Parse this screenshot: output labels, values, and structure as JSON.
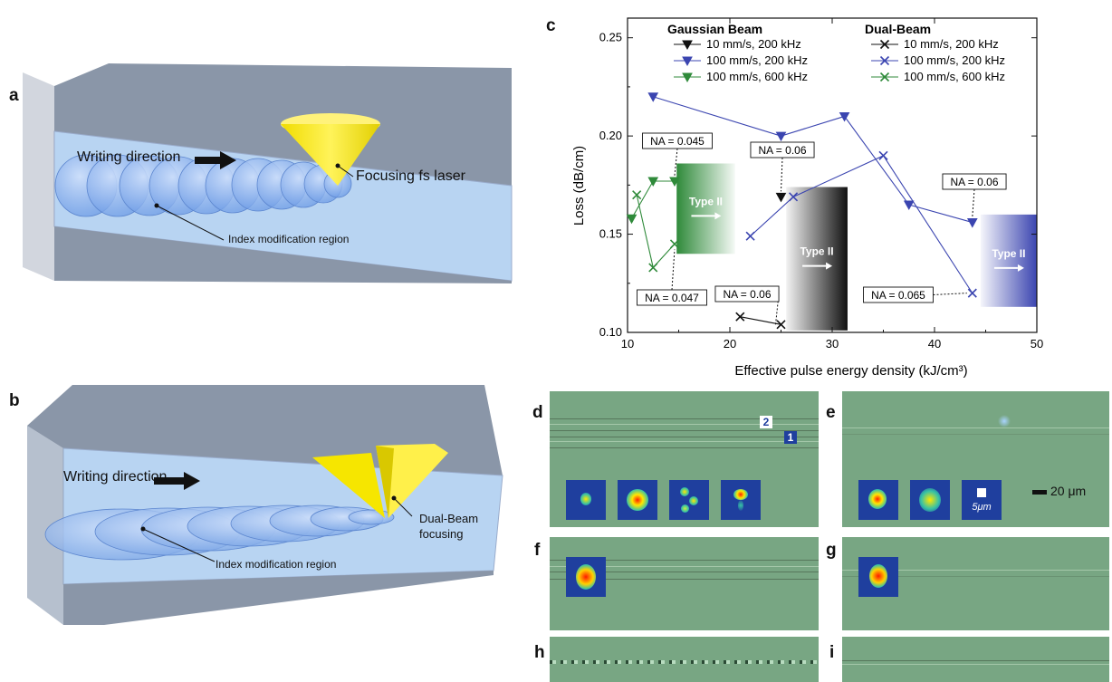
{
  "panels": {
    "a": {
      "label": "a",
      "writing_direction": "Writing direction",
      "laser_label": "Focusing fs laser",
      "region_label": "Index modification region"
    },
    "b": {
      "label": "b",
      "writing_direction": "Writing direction",
      "laser_label_line1": "Dual-Beam",
      "laser_label_line2": "focusing",
      "region_label": "Index modification region"
    },
    "c": {
      "label": "c"
    },
    "d": {
      "label": "d",
      "tag1": "1",
      "tag2": "2"
    },
    "e": {
      "label": "e",
      "inset_scale": "5μm",
      "scale_bar": "20 μm"
    },
    "f": {
      "label": "f"
    },
    "g": {
      "label": "g"
    },
    "h": {
      "label": "h"
    },
    "i": {
      "label": "i"
    }
  },
  "colors": {
    "black": "#111111",
    "blue": "#3b45b0",
    "green": "#2f8a3a",
    "yellow": "#f4e400",
    "micro_bg": "#78a683",
    "inset_bg": "#1f3f9e"
  },
  "chart_data": {
    "type": "line",
    "xlabel": "Effective pulse energy density (kJ/cm³)",
    "ylabel": "Loss (dB/cm)",
    "xlim": [
      10,
      50
    ],
    "ylim": [
      0.1,
      0.26
    ],
    "xticks": [
      10,
      20,
      30,
      40,
      50
    ],
    "yticks": [
      0.1,
      0.15,
      0.2,
      0.25
    ],
    "legend_groups": [
      {
        "title": "Gaussian Beam",
        "entries": [
          {
            "name": "10 mm/s, 200 kHz",
            "color": "#111111",
            "marker": "triangle-down"
          },
          {
            "name": "100 mm/s, 200 kHz",
            "color": "#3b45b0",
            "marker": "triangle-down"
          },
          {
            "name": "100 mm/s, 600 kHz",
            "color": "#2f8a3a",
            "marker": "triangle-down"
          }
        ]
      },
      {
        "title": "Dual-Beam",
        "entries": [
          {
            "name": "10 mm/s, 200 kHz",
            "color": "#111111",
            "marker": "x"
          },
          {
            "name": "100 mm/s, 200 kHz",
            "color": "#3b45b0",
            "marker": "x"
          },
          {
            "name": "100 mm/s, 600 kHz",
            "color": "#2f8a3a",
            "marker": "x"
          }
        ]
      }
    ],
    "series": [
      {
        "group": "Gaussian Beam",
        "color": "#111111",
        "marker": "triangle-down",
        "x": [
          25
        ],
        "y": [
          0.169
        ]
      },
      {
        "group": "Gaussian Beam",
        "color": "#3b45b0",
        "marker": "triangle-down",
        "x": [
          12.5,
          25,
          31.2,
          37.5,
          43.7
        ],
        "y": [
          0.22,
          0.2,
          0.21,
          0.165,
          0.156
        ]
      },
      {
        "group": "Gaussian Beam",
        "color": "#2f8a3a",
        "marker": "triangle-down",
        "x": [
          10.4,
          12.5,
          14.6
        ],
        "y": [
          0.158,
          0.177,
          0.177
        ]
      },
      {
        "group": "Dual-Beam",
        "color": "#111111",
        "marker": "x",
        "x": [
          21,
          25
        ],
        "y": [
          0.108,
          0.104
        ]
      },
      {
        "group": "Dual-Beam",
        "color": "#3b45b0",
        "marker": "x",
        "x": [
          22,
          26.2,
          35,
          43.7
        ],
        "y": [
          0.149,
          0.169,
          0.19,
          0.12
        ]
      },
      {
        "group": "Dual-Beam",
        "color": "#2f8a3a",
        "marker": "x",
        "x": [
          10.9,
          12.5,
          14.6
        ],
        "y": [
          0.17,
          0.133,
          0.145
        ]
      }
    ],
    "annotations": [
      {
        "text": "NA = 0.045",
        "target_x": 14.6,
        "target_y": 0.177
      },
      {
        "text": "NA = 0.047",
        "target_x": 14.6,
        "target_y": 0.145
      },
      {
        "text": "NA = 0.06",
        "target_x": 25,
        "target_y": 0.169
      },
      {
        "text": "NA = 0.06",
        "target_x": 25,
        "target_y": 0.104
      },
      {
        "text": "NA = 0.06",
        "target_x": 43.7,
        "target_y": 0.156
      },
      {
        "text": "NA = 0.065",
        "target_x": 43.7,
        "target_y": 0.12
      }
    ],
    "type_regions": [
      {
        "label": "Type II",
        "color": "#2f8a3a",
        "x_start": 14.8,
        "x_end": 20.5,
        "y_low": 0.14,
        "y_high": 0.186
      },
      {
        "label": "Type II",
        "color": "#111111",
        "x_start": 25.5,
        "x_end": 31.5,
        "y_low": 0.101,
        "y_high": 0.174
      },
      {
        "label": "Type II",
        "color": "#3b45b0",
        "x_start": 44.5,
        "x_end": 50,
        "y_low": 0.113,
        "y_high": 0.16
      }
    ]
  }
}
